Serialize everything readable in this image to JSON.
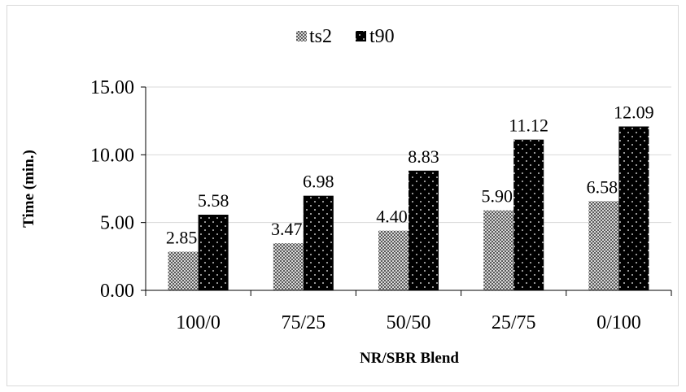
{
  "chart_data": {
    "type": "bar",
    "title": "",
    "xlabel": "NR/SBR Blend",
    "ylabel": "Time (min.)",
    "categories": [
      "100/0",
      "75/25",
      "50/50",
      "25/75",
      "0/100"
    ],
    "series": [
      {
        "name": "ts2",
        "values": [
          2.85,
          3.47,
          4.4,
          5.9,
          6.58
        ],
        "labels": [
          "2.85",
          "3.47",
          "4.40",
          "5.90",
          "6.58"
        ]
      },
      {
        "name": "t90",
        "values": [
          5.58,
          6.98,
          8.83,
          11.12,
          12.09
        ],
        "labels": [
          "5.58",
          "6.98",
          "8.83",
          "11.12",
          "12.09"
        ]
      }
    ],
    "ylim": [
      0,
      15
    ],
    "yticks": [
      "0.00",
      "5.00",
      "10.00",
      "15.00"
    ],
    "grid": true,
    "legend_position": "top-center"
  },
  "colors": {
    "ts2_fill": "#b0b0b0",
    "t90_fill": "#000000",
    "grid": "#d9d9d9",
    "axis": "#000000"
  }
}
